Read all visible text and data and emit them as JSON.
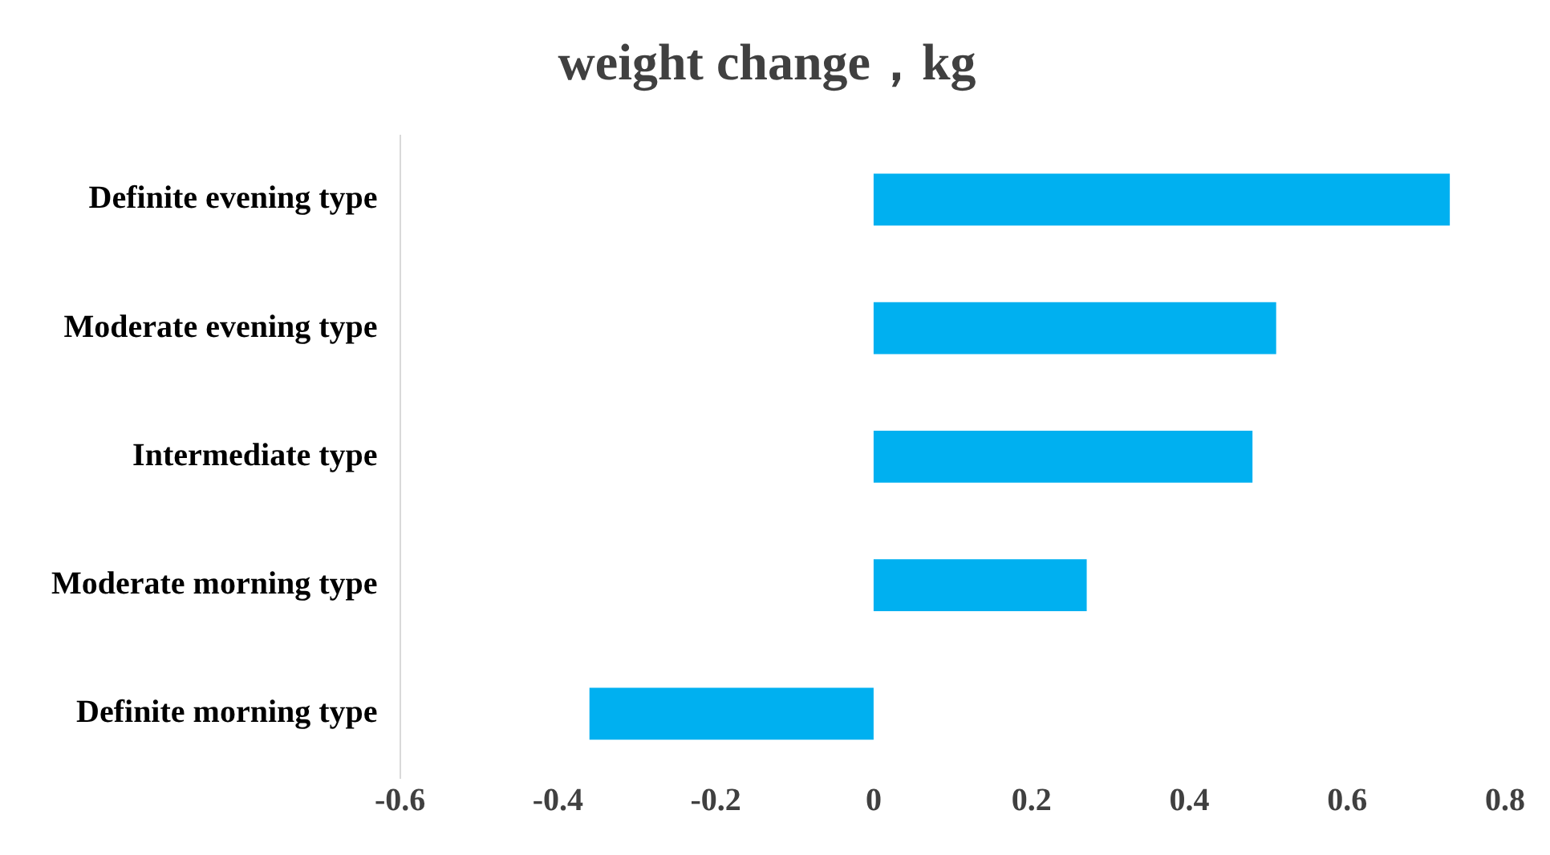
{
  "chart_data": {
    "type": "bar",
    "orientation": "horizontal",
    "title": "weight change，kg",
    "categories": [
      "Definite evening type",
      "Moderate evening type",
      "Intermediate type",
      "Moderate morning type",
      "Definite morning type"
    ],
    "values": [
      0.73,
      0.51,
      0.48,
      0.27,
      -0.36
    ],
    "color": "#00b0f0",
    "xlim": [
      -0.6,
      0.8
    ],
    "xticks": [
      -0.6,
      -0.4,
      -0.2,
      0,
      0.2,
      0.4,
      0.6,
      0.8
    ],
    "grid": false,
    "legend": false
  }
}
